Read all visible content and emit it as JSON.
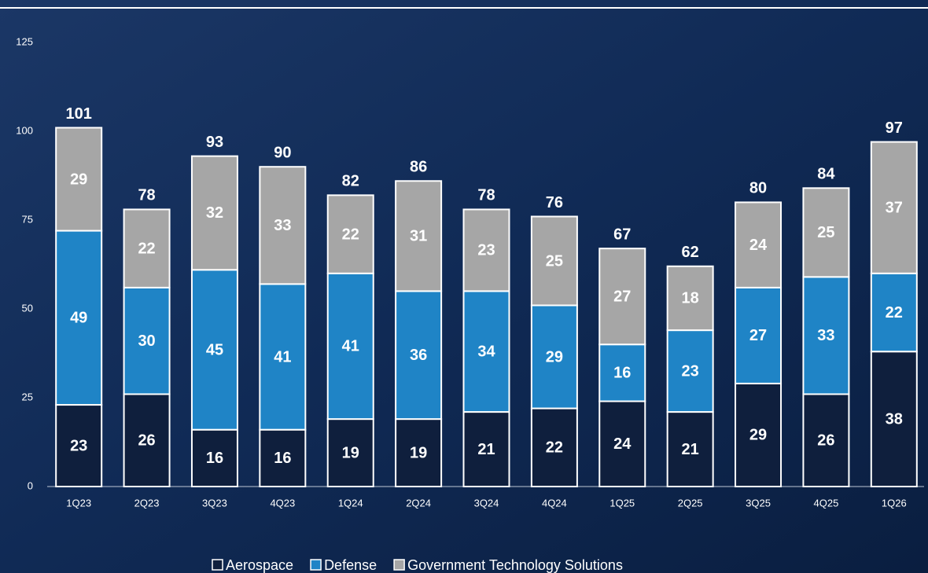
{
  "chart_data": {
    "type": "stacked-bar",
    "categories": [
      "1Q23",
      "2Q23",
      "3Q23",
      "4Q23",
      "1Q24",
      "2Q24",
      "3Q24",
      "4Q24",
      "1Q25",
      "2Q25",
      "3Q25",
      "4Q25",
      "1Q26"
    ],
    "series": [
      {
        "name": "Aerospace",
        "color": "#0f1f3d",
        "values": [
          23,
          26,
          16,
          16,
          19,
          19,
          21,
          22,
          24,
          21,
          29,
          26,
          38
        ]
      },
      {
        "name": "Defense",
        "color": "#1f84c6",
        "values": [
          49,
          30,
          45,
          41,
          41,
          36,
          34,
          29,
          16,
          23,
          27,
          33,
          22
        ]
      },
      {
        "name": "Government Technology Solutions",
        "color": "#a6a6a6",
        "values": [
          29,
          22,
          32,
          33,
          22,
          31,
          23,
          25,
          27,
          18,
          24,
          25,
          37
        ]
      }
    ],
    "totals": [
      101,
      78,
      93,
      90,
      82,
      86,
      78,
      76,
      67,
      62,
      80,
      84,
      97
    ],
    "ylim": [
      0,
      125
    ],
    "yticks": [
      0,
      25,
      50,
      75,
      100,
      125
    ],
    "grid": false,
    "legend": "bottom"
  }
}
